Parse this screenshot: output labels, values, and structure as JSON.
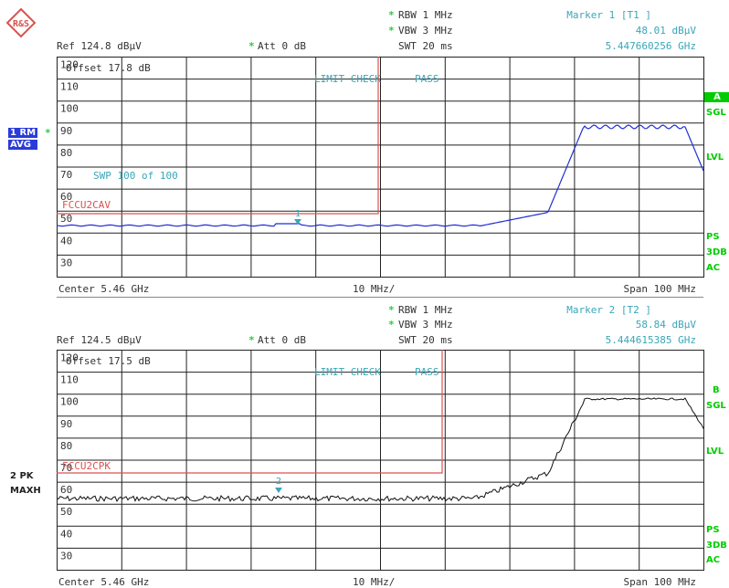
{
  "brand": {
    "logo_letters": "R&S"
  },
  "upper": {
    "ref_label": "Ref  124.8 dBµV",
    "att_label": "Att  0 dB",
    "rbw": "RBW 1 MHz",
    "vbw": "VBW 3 MHz",
    "swt": "SWT 20 ms",
    "marker_title": "Marker 1 [T1 ]",
    "marker_level": "48.01 dBµV",
    "marker_freq": "5.447660256 GHz",
    "offset_label": "Offset  17.8 dB",
    "limit_check": "LIMIT CHECK",
    "limit_result": "PASS",
    "sweep_count": "SWP  100 of  100",
    "limit_line_name": "FCCU2CAV",
    "marker_num": "1",
    "trace_tag_line1": "1 RM",
    "trace_tag_line2": "AVG",
    "y_ticks": [
      "120",
      "110",
      "100",
      "90",
      "80",
      "70",
      "60",
      "50",
      "40",
      "30"
    ],
    "right_indicators": [
      "A",
      "SGL",
      "LVL",
      "PS",
      "3DB",
      "AC"
    ],
    "center": "Center 5.46 GHz",
    "div": "10 MHz/",
    "span": "Span 100 MHz"
  },
  "lower": {
    "ref_label": "Ref  124.5 dBµV",
    "att_label": "Att  0 dB",
    "rbw": "RBW 1 MHz",
    "vbw": "VBW 3 MHz",
    "swt": "SWT 20 ms",
    "marker_title": "Marker 2 [T2 ]",
    "marker_level": "58.84 dBµV",
    "marker_freq": "5.444615385 GHz",
    "offset_label": "Offset  17.5 dB",
    "limit_check": "LIMIT CHECK",
    "limit_result": "PASS",
    "limit_line_name": "FCCU2CPK",
    "marker_num": "2",
    "trace_tag_line1": "2 PK",
    "trace_tag_line2": "MAXH",
    "y_ticks": [
      "120",
      "110",
      "100",
      "90",
      "80",
      "70",
      "60",
      "50",
      "40",
      "30"
    ],
    "right_indicators": [
      "B",
      "SGL",
      "LVL",
      "PS",
      "3DB",
      "AC"
    ],
    "center": "Center 5.46 GHz",
    "div": "10 MHz/",
    "span": "Span 100 MHz"
  },
  "colors": {
    "trace_upper": "#1f2fd6",
    "trace_lower": "#111111",
    "limit": "#d9534f",
    "marker": "#3aa6b8",
    "indicator": "#00cc00"
  }
}
